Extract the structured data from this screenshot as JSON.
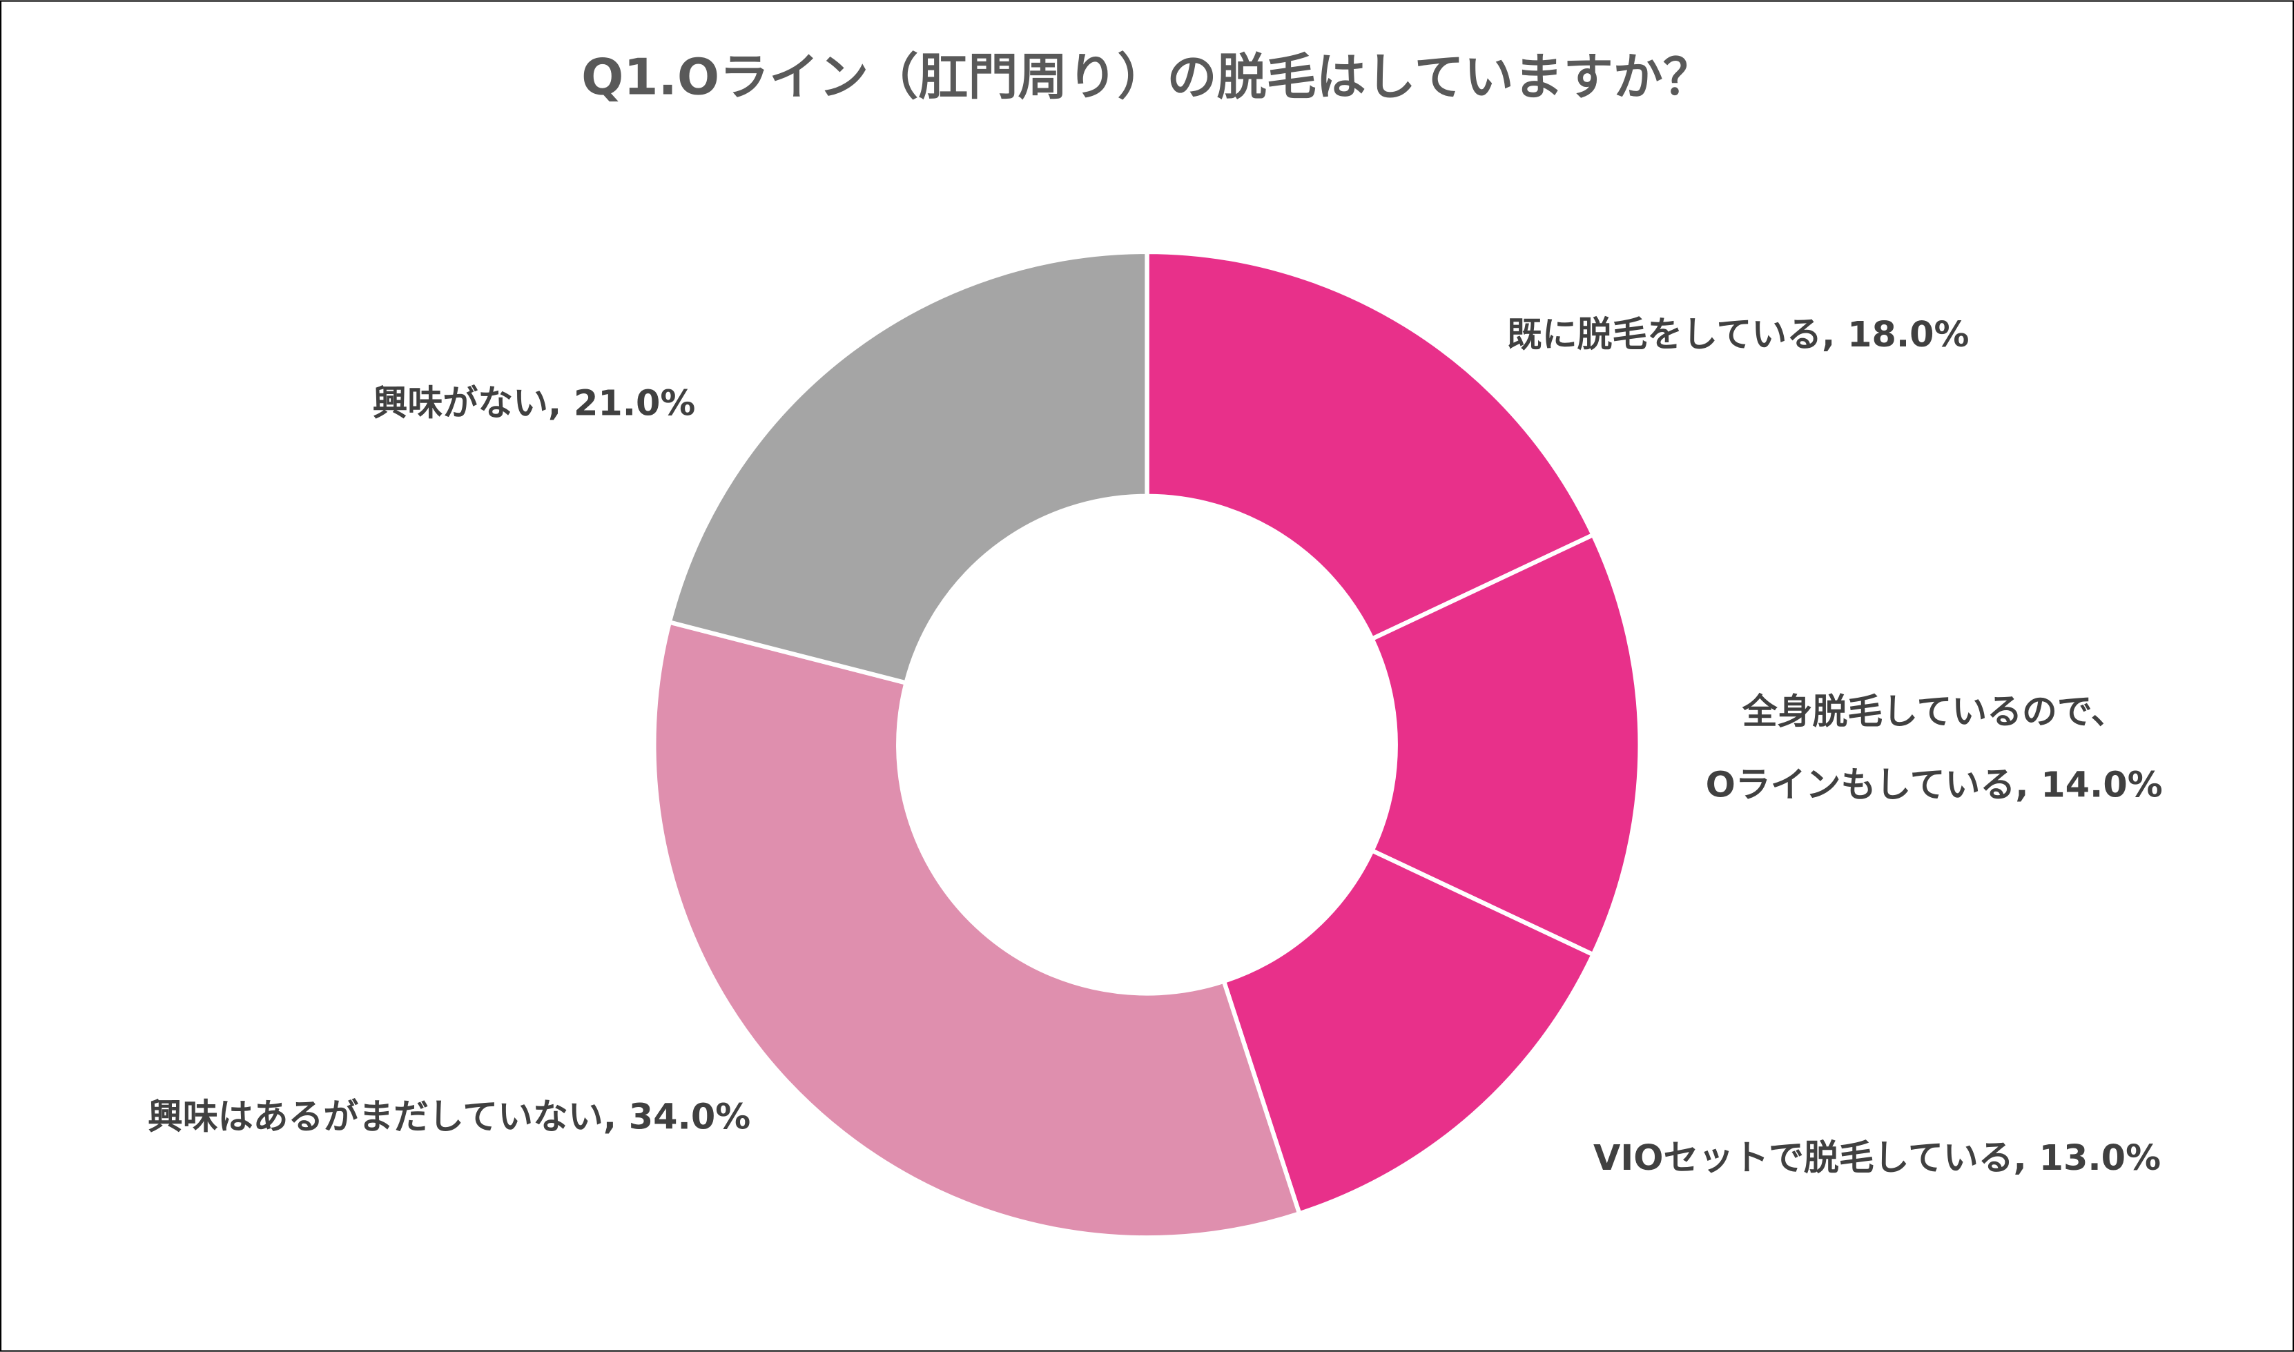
{
  "chart_data": {
    "type": "donut",
    "title": "Q1.Oライン（肛門周り）の脱毛はしていますか？",
    "values": [
      18.0,
      14.0,
      13.0,
      34.0,
      21.0
    ],
    "value_labels": [
      "既に脱毛をしている, 18.0%",
      "全身脱毛しているので、\nOラインもしている, 14.0%",
      "VIOセットで脱毛している, 13.0%",
      "興味はあるがまだしていない, 34.0%",
      "興味がない, 21.0%"
    ],
    "colors": [
      "#e8308a",
      "#e8308a",
      "#e8308a",
      "#df8fae",
      "#a5a5a5"
    ]
  }
}
